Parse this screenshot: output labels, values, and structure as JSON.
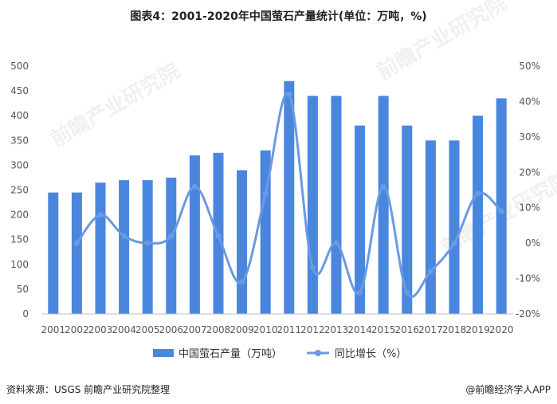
{
  "title": "图表4：2001-2020年中国萤石产量统计(单位：万吨，%)",
  "footer": {
    "source": "资料来源：USGS 前瞻产业研究院整理",
    "brand": "@前瞻经济学人APP"
  },
  "watermark": "前瞻产业研究院",
  "colors": {
    "bar": "#4a86de",
    "line": "#6a9ae2",
    "axis": "#bfbfbf"
  },
  "chart_data": {
    "type": "bar",
    "categories": [
      "2001",
      "2002",
      "2003",
      "2004",
      "2005",
      "2006",
      "2007",
      "2008",
      "2009",
      "2010",
      "2011",
      "2012",
      "2013",
      "2014",
      "2015",
      "2016",
      "2017",
      "2018",
      "2019",
      "2020"
    ],
    "series": [
      {
        "name": "中国萤石产量（万吨）",
        "type": "bar",
        "axis": "left",
        "values": [
          245,
          245,
          265,
          270,
          270,
          275,
          320,
          325,
          290,
          330,
          470,
          440,
          440,
          380,
          440,
          380,
          350,
          350,
          400,
          435
        ]
      },
      {
        "name": "同比增长（%）",
        "type": "line",
        "axis": "right",
        "values": [
          null,
          0,
          8,
          2,
          0,
          2,
          16,
          2,
          -11,
          14,
          42,
          -7,
          0,
          -14,
          16,
          -14,
          -8,
          0,
          14,
          9
        ]
      }
    ],
    "y_left": {
      "ylim": [
        0,
        500
      ],
      "ticks": [
        0,
        50,
        100,
        150,
        200,
        250,
        300,
        350,
        400,
        450,
        500
      ]
    },
    "y_right": {
      "ylim": [
        -20,
        50
      ],
      "ticks": [
        "-20%",
        "-10%",
        "0%",
        "10%",
        "20%",
        "30%",
        "40%",
        "50%"
      ],
      "tick_values": [
        -20,
        -10,
        0,
        10,
        20,
        30,
        40,
        50
      ]
    },
    "grid": false,
    "legend_position": "bottom"
  }
}
